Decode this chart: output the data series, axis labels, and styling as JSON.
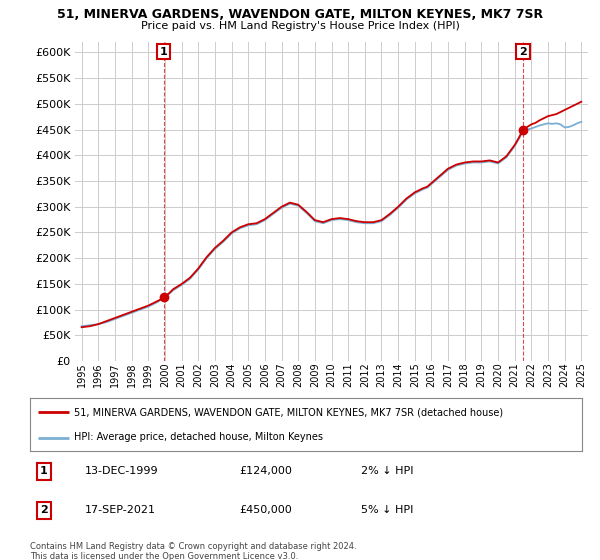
{
  "title": "51, MINERVA GARDENS, WAVENDON GATE, MILTON KEYNES, MK7 7SR",
  "subtitle": "Price paid vs. HM Land Registry's House Price Index (HPI)",
  "ylim": [
    0,
    620000
  ],
  "yticks": [
    0,
    50000,
    100000,
    150000,
    200000,
    250000,
    300000,
    350000,
    400000,
    450000,
    500000,
    550000,
    600000
  ],
  "bg_color": "#ffffff",
  "grid_color": "#cccccc",
  "hpi_color": "#7bafd4",
  "price_color": "#cc0000",
  "legend_label_price": "51, MINERVA GARDENS, WAVENDON GATE, MILTON KEYNES, MK7 7SR (detached house)",
  "legend_label_hpi": "HPI: Average price, detached house, Milton Keynes",
  "annotation1_label": "1",
  "annotation1_date": "13-DEC-1999",
  "annotation1_price": "£124,000",
  "annotation1_hpi": "2% ↓ HPI",
  "annotation2_label": "2",
  "annotation2_date": "17-SEP-2021",
  "annotation2_price": "£450,000",
  "annotation2_hpi": "5% ↓ HPI",
  "footer": "Contains HM Land Registry data © Crown copyright and database right 2024.\nThis data is licensed under the Open Government Licence v3.0.",
  "hpi_x": [
    1995.0,
    1995.25,
    1995.5,
    1995.75,
    1996.0,
    1996.25,
    1996.5,
    1996.75,
    1997.0,
    1997.25,
    1997.5,
    1997.75,
    1998.0,
    1998.25,
    1998.5,
    1998.75,
    1999.0,
    1999.25,
    1999.5,
    1999.75,
    2000.0,
    2000.25,
    2000.5,
    2000.75,
    2001.0,
    2001.25,
    2001.5,
    2001.75,
    2002.0,
    2002.25,
    2002.5,
    2002.75,
    2003.0,
    2003.25,
    2003.5,
    2003.75,
    2004.0,
    2004.25,
    2004.5,
    2004.75,
    2005.0,
    2005.25,
    2005.5,
    2005.75,
    2006.0,
    2006.25,
    2006.5,
    2006.75,
    2007.0,
    2007.25,
    2007.5,
    2007.75,
    2008.0,
    2008.25,
    2008.5,
    2008.75,
    2009.0,
    2009.25,
    2009.5,
    2009.75,
    2010.0,
    2010.25,
    2010.5,
    2010.75,
    2011.0,
    2011.25,
    2011.5,
    2011.75,
    2012.0,
    2012.25,
    2012.5,
    2012.75,
    2013.0,
    2013.25,
    2013.5,
    2013.75,
    2014.0,
    2014.25,
    2014.5,
    2014.75,
    2015.0,
    2015.25,
    2015.5,
    2015.75,
    2016.0,
    2016.25,
    2016.5,
    2016.75,
    2017.0,
    2017.25,
    2017.5,
    2017.75,
    2018.0,
    2018.25,
    2018.5,
    2018.75,
    2019.0,
    2019.25,
    2019.5,
    2019.75,
    2020.0,
    2020.25,
    2020.5,
    2020.75,
    2021.0,
    2021.25,
    2021.5,
    2021.75,
    2022.0,
    2022.25,
    2022.5,
    2022.75,
    2023.0,
    2023.25,
    2023.5,
    2023.75,
    2024.0,
    2024.25,
    2024.5,
    2024.75,
    2025.0
  ],
  "hpi_y": [
    68000,
    69000,
    70000,
    71000,
    72000,
    74000,
    76000,
    79000,
    82000,
    85000,
    88000,
    91000,
    94000,
    97000,
    100000,
    103000,
    106000,
    110000,
    114000,
    119000,
    124000,
    131000,
    138000,
    143000,
    148000,
    154000,
    160000,
    169000,
    178000,
    189000,
    200000,
    209000,
    218000,
    225000,
    232000,
    240000,
    248000,
    253000,
    258000,
    261000,
    264000,
    265000,
    266000,
    270000,
    274000,
    280000,
    286000,
    292000,
    298000,
    302000,
    306000,
    304000,
    302000,
    295000,
    288000,
    280000,
    272000,
    270000,
    268000,
    271000,
    274000,
    275000,
    276000,
    275000,
    274000,
    272000,
    270000,
    269000,
    268000,
    268000,
    268000,
    270000,
    272000,
    278000,
    284000,
    291000,
    298000,
    306000,
    314000,
    320000,
    326000,
    330000,
    334000,
    337000,
    344000,
    351000,
    358000,
    365000,
    372000,
    376000,
    380000,
    382000,
    384000,
    385000,
    386000,
    386000,
    386000,
    387000,
    388000,
    386000,
    384000,
    390000,
    396000,
    407000,
    418000,
    432000,
    446000,
    450000,
    452000,
    455000,
    458000,
    460000,
    462000,
    461000,
    462000,
    460000,
    454000,
    455000,
    458000,
    462000,
    465000
  ],
  "price_x": [
    1995.0,
    1995.25,
    1995.5,
    1995.75,
    1996.0,
    1996.25,
    1996.5,
    1996.75,
    1997.0,
    1997.25,
    1997.5,
    1997.75,
    1998.0,
    1998.25,
    1998.5,
    1998.75,
    1999.0,
    1999.25,
    1999.5,
    1999.75,
    1999.917,
    2000.25,
    2000.5,
    2000.75,
    2001.0,
    2001.25,
    2001.5,
    2001.75,
    2002.0,
    2002.25,
    2002.5,
    2002.75,
    2003.0,
    2003.25,
    2003.5,
    2003.75,
    2004.0,
    2004.25,
    2004.5,
    2004.75,
    2005.0,
    2005.25,
    2005.5,
    2005.75,
    2006.0,
    2006.25,
    2006.5,
    2006.75,
    2007.0,
    2007.25,
    2007.5,
    2007.75,
    2008.0,
    2008.25,
    2008.5,
    2008.75,
    2009.0,
    2009.25,
    2009.5,
    2009.75,
    2010.0,
    2010.25,
    2010.5,
    2010.75,
    2011.0,
    2011.25,
    2011.5,
    2011.75,
    2012.0,
    2012.25,
    2012.5,
    2012.75,
    2013.0,
    2013.25,
    2013.5,
    2013.75,
    2014.0,
    2014.25,
    2014.5,
    2014.75,
    2015.0,
    2015.25,
    2015.5,
    2015.75,
    2016.0,
    2016.25,
    2016.5,
    2016.75,
    2017.0,
    2017.25,
    2017.5,
    2017.75,
    2018.0,
    2018.25,
    2018.5,
    2018.75,
    2019.0,
    2019.25,
    2019.5,
    2019.75,
    2020.0,
    2020.25,
    2020.5,
    2020.75,
    2021.0,
    2021.25,
    2021.5,
    2021.75,
    2022.0,
    2022.25,
    2022.5,
    2022.75,
    2023.0,
    2023.25,
    2023.5,
    2023.75,
    2024.0,
    2024.25,
    2024.5,
    2024.75,
    2025.0
  ],
  "price_y": [
    66000,
    67000,
    68000,
    70000,
    72000,
    75000,
    78000,
    81000,
    84000,
    87000,
    90000,
    93000,
    96000,
    99000,
    102000,
    105000,
    108000,
    112000,
    116000,
    120000,
    124000,
    132000,
    140000,
    145000,
    150000,
    156000,
    162000,
    171000,
    180000,
    191000,
    202000,
    211000,
    220000,
    227000,
    234000,
    242000,
    250000,
    255000,
    260000,
    263000,
    266000,
    267000,
    268000,
    272000,
    276000,
    282000,
    288000,
    294000,
    300000,
    304000,
    308000,
    306000,
    304000,
    297000,
    290000,
    282000,
    274000,
    272000,
    270000,
    273000,
    276000,
    277000,
    278000,
    277000,
    276000,
    274000,
    272000,
    271000,
    270000,
    270000,
    270000,
    272000,
    274000,
    280000,
    286000,
    293000,
    300000,
    308000,
    316000,
    322000,
    328000,
    332000,
    336000,
    339000,
    346000,
    353000,
    360000,
    367000,
    374000,
    378000,
    382000,
    384000,
    386000,
    387000,
    388000,
    388000,
    388000,
    389000,
    390000,
    388000,
    386000,
    392000,
    398000,
    409000,
    420000,
    434000,
    450000,
    455000,
    460000,
    463000,
    468000,
    472000,
    476000,
    478000,
    480000,
    484000,
    488000,
    492000,
    496000,
    500000,
    504000
  ],
  "sale1_x": 1999.917,
  "sale1_y": 124000,
  "sale2_x": 2021.5,
  "sale2_y": 450000,
  "xtick_years": [
    1995,
    1996,
    1997,
    1998,
    1999,
    2000,
    2001,
    2002,
    2003,
    2004,
    2005,
    2006,
    2007,
    2008,
    2009,
    2010,
    2011,
    2012,
    2013,
    2014,
    2015,
    2016,
    2017,
    2018,
    2019,
    2020,
    2021,
    2022,
    2023,
    2024,
    2025
  ]
}
